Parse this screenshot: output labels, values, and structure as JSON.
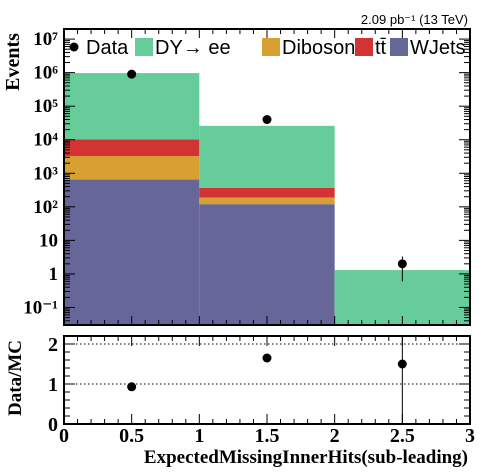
{
  "lumi_label": "2.09 pb⁻¹ (13 TeV)",
  "colors": {
    "dy": "#66cc99",
    "diboson": "#d8a030",
    "ttbar": "#d43333",
    "wjets": "#666699",
    "data": "#000000"
  },
  "chart_data": [
    {
      "type": "bar",
      "panel": "main",
      "stacked": true,
      "log_y": true,
      "ylabel": "Events",
      "xlim": [
        0,
        3
      ],
      "ylim": [
        0.03,
        20000000
      ],
      "y_ticks": [
        {
          "value": 0.1,
          "label": "10⁻¹"
        },
        {
          "value": 1,
          "label": "1"
        },
        {
          "value": 10,
          "label": "10"
        },
        {
          "value": 100,
          "label": "10²"
        },
        {
          "value": 1000,
          "label": "10³"
        },
        {
          "value": 10000,
          "label": "10⁴"
        },
        {
          "value": 100000,
          "label": "10⁵"
        },
        {
          "value": 1000000,
          "label": "10⁶"
        },
        {
          "value": 10000000,
          "label": "10⁷"
        }
      ],
      "bin_edges": [
        0,
        1,
        2,
        3
      ],
      "series": [
        {
          "key": "wjets",
          "name": "WJets",
          "values": [
            650,
            120,
            0
          ]
        },
        {
          "key": "diboson",
          "name": "Diboson",
          "values": [
            2600,
            70,
            0
          ]
        },
        {
          "key": "ttbar",
          "name": "tt̄",
          "values": [
            7000,
            180,
            0
          ]
        },
        {
          "key": "dy",
          "name": "DY→ ee",
          "values": [
            960000,
            25600,
            1.3
          ]
        }
      ],
      "data": {
        "name": "Data",
        "x": [
          0.5,
          1.5,
          2.5
        ],
        "y": [
          900000,
          40000,
          2
        ],
        "yerr_low": [
          950,
          200,
          1.4
        ],
        "yerr_high": [
          950,
          200,
          1.3
        ]
      },
      "legend_order": [
        {
          "key": "data",
          "label": "Data"
        },
        {
          "key": "dy",
          "label": "DY→ ee"
        },
        {
          "key": "diboson",
          "label": "Diboson"
        },
        {
          "key": "ttbar",
          "label": "tt̄"
        },
        {
          "key": "wjets",
          "label": "WJets"
        }
      ],
      "legend_position": "top"
    },
    {
      "type": "scatter",
      "panel": "ratio",
      "ylabel": "Data/MC",
      "xlabel": "ExpectedMissingInnerHits(sub-leading)",
      "xlim": [
        0,
        3
      ],
      "ylim": [
        0,
        2.2
      ],
      "x_ticks": [
        {
          "value": 0,
          "label": "0"
        },
        {
          "value": 0.5,
          "label": "0.5"
        },
        {
          "value": 1,
          "label": "1"
        },
        {
          "value": 1.5,
          "label": "1.5"
        },
        {
          "value": 2,
          "label": "2"
        },
        {
          "value": 2.5,
          "label": "2.5"
        },
        {
          "value": 3,
          "label": "3"
        }
      ],
      "y_ticks": [
        {
          "value": 0,
          "label": "0"
        },
        {
          "value": 1,
          "label": "1"
        },
        {
          "value": 2,
          "label": "2"
        }
      ],
      "reference_lines": [
        1,
        2
      ],
      "x": [
        0.5,
        1.5,
        2.5
      ],
      "y": [
        0.93,
        1.65,
        1.5
      ],
      "yerr_low": [
        0.0,
        0.0,
        1.5
      ],
      "yerr_high": [
        0.0,
        0.0,
        1.0
      ]
    }
  ]
}
